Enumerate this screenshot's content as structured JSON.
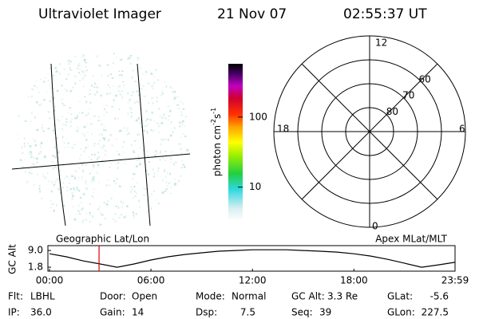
{
  "header": {
    "instrument": "Ultraviolet Imager",
    "date": "21 Nov 07",
    "time": "02:55:37 UT"
  },
  "colorbar": {
    "label": "photon cm",
    "exp1": "-2",
    "unit2": "s",
    "exp2": "-1",
    "log": true,
    "range": [
      3.3,
      575
    ],
    "ticks": [
      10,
      100
    ]
  },
  "polar": {
    "mlt_labels": {
      "top": "12",
      "left": "18",
      "right": "6",
      "bottom": "0"
    },
    "lat_labels": [
      60,
      70,
      80
    ],
    "lat_circles": [
      50,
      60,
      70,
      80
    ]
  },
  "chart_data": {
    "type": "line",
    "left_title": "Geographic Lat/Lon",
    "right_title": "Apex MLat/MLT",
    "ylabel": "GC Alt",
    "x": [
      0,
      1,
      2,
      3,
      4,
      5,
      6,
      7,
      8,
      9,
      10,
      11,
      12,
      13,
      14,
      15,
      16,
      17,
      18,
      19,
      20,
      21,
      22,
      23,
      23.98
    ],
    "series": [
      {
        "name": "GC Alt",
        "color": "#000000",
        "values": [
          7.6,
          6.3,
          4.5,
          3.2,
          1.8,
          3.2,
          4.9,
          6.3,
          7.3,
          8.0,
          8.7,
          9.0,
          9.3,
          9.3,
          9.3,
          9.0,
          8.7,
          8.3,
          7.6,
          6.6,
          5.2,
          3.5,
          1.8,
          2.8,
          3.9
        ]
      }
    ],
    "marker": {
      "x": 2.93,
      "color": "#e00000"
    },
    "xlim": [
      0,
      23.98
    ],
    "xticks": [
      {
        "value": 0,
        "label": "00:00"
      },
      {
        "value": 6,
        "label": "06:00"
      },
      {
        "value": 12,
        "label": "12:00"
      },
      {
        "value": 18,
        "label": "18:00"
      },
      {
        "value": 23.98,
        "label": "23:59"
      }
    ],
    "ylim": [
      0.1,
      11.1
    ],
    "yticks": [
      {
        "value": 9,
        "label": "9.0"
      },
      {
        "value": 1.8,
        "label": "1.8"
      }
    ]
  },
  "info": [
    [
      [
        "Flt:",
        "LBHL"
      ],
      [
        "Door:",
        "Open"
      ],
      [
        "Mode:",
        "Normal"
      ],
      [
        "GC Alt:",
        "3.3 Re"
      ],
      [
        "GLat:",
        "-5.6"
      ]
    ],
    [
      [
        "IP:",
        "36.0"
      ],
      [
        "Gain:",
        "14"
      ],
      [
        "Dsp:",
        "7.5"
      ],
      [
        "Seq:",
        "39"
      ],
      [
        "GLon:",
        "227.5"
      ]
    ]
  ]
}
